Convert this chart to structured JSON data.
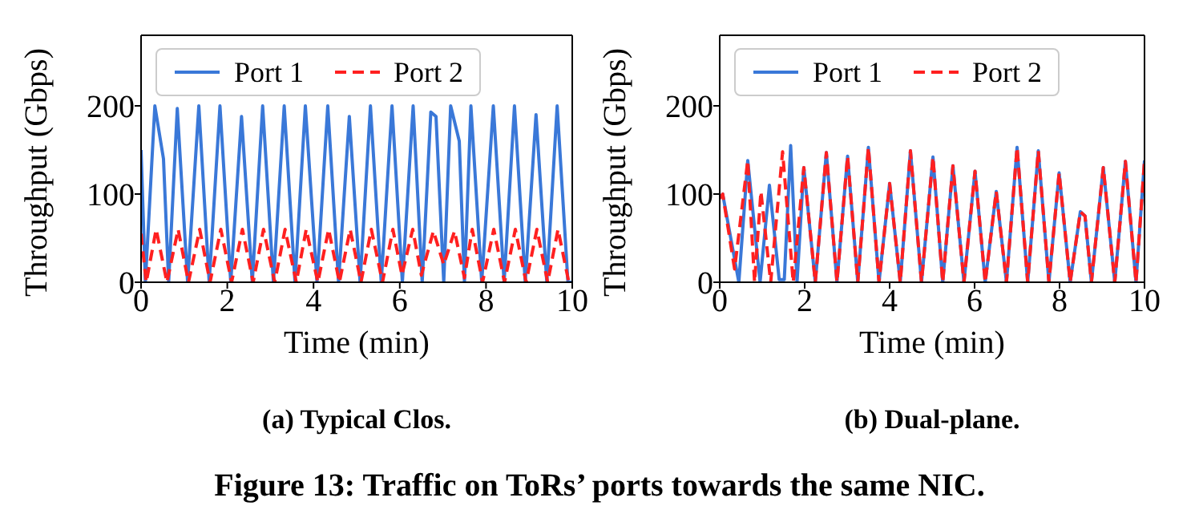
{
  "chart_data": [
    {
      "type": "line",
      "title": "(a) Typical Clos.",
      "xlabel": "Time (min)",
      "ylabel": "Throughput (Gbps)",
      "xlim": [
        0,
        10
      ],
      "xticks": [
        0,
        2,
        4,
        6,
        8,
        10
      ],
      "ylim": [
        0,
        280
      ],
      "yticks": [
        0,
        100,
        200
      ],
      "legend": "top left",
      "grid": false,
      "annotations": [
        "Figure 13: Traffic on ToRs’ ports towards the same NIC."
      ],
      "series": [
        {
          "name": "Port 1",
          "color": "#3a78d8",
          "line_style": "solid",
          "x": [
            0,
            0.1,
            0.32,
            0.52,
            0.64,
            0.84,
            1.08,
            1.34,
            1.58,
            1.83,
            2.08,
            2.33,
            2.58,
            2.82,
            3.07,
            3.32,
            3.57,
            3.81,
            4.08,
            4.33,
            4.58,
            4.83,
            5.08,
            5.32,
            5.57,
            5.82,
            6.06,
            6.31,
            6.52,
            6.72,
            6.84,
            7.02,
            7.18,
            7.38,
            7.5,
            7.65,
            7.9,
            8.17,
            8.42,
            8.66,
            8.91,
            9.16,
            9.41,
            9.65,
            9.9,
            10
          ],
          "values": [
            150,
            0,
            200,
            140,
            0,
            197,
            0,
            200,
            0,
            200,
            0,
            188,
            0,
            200,
            0,
            200,
            0,
            200,
            0,
            200,
            0,
            188,
            0,
            200,
            0,
            200,
            0,
            200,
            0,
            193,
            188,
            0,
            200,
            160,
            0,
            200,
            0,
            200,
            0,
            200,
            0,
            190,
            0,
            200,
            0,
            0
          ]
        },
        {
          "name": "Port 2",
          "color": "#ff2020",
          "line_style": "dashed",
          "x": [
            0,
            0.12,
            0.35,
            0.6,
            0.86,
            1.1,
            1.36,
            1.6,
            1.85,
            2.1,
            2.35,
            2.6,
            2.84,
            3.1,
            3.34,
            3.6,
            3.83,
            4.1,
            4.35,
            4.6,
            4.85,
            5.1,
            5.34,
            5.6,
            5.84,
            6.05,
            6.3,
            6.5,
            6.78,
            7.02,
            7.27,
            7.5,
            7.68,
            7.92,
            8.18,
            8.43,
            8.68,
            8.93,
            9.18,
            9.43,
            9.67,
            9.92,
            10
          ],
          "values": [
            55,
            0,
            60,
            0,
            60,
            0,
            60,
            0,
            60,
            0,
            60,
            0,
            60,
            0,
            60,
            0,
            60,
            0,
            60,
            0,
            60,
            0,
            60,
            0,
            60,
            8,
            60,
            8,
            58,
            20,
            58,
            5,
            60,
            0,
            60,
            0,
            60,
            0,
            60,
            0,
            60,
            0,
            0
          ]
        }
      ]
    },
    {
      "type": "line",
      "title": "(b) Dual-plane.",
      "xlabel": "Time (min)",
      "ylabel": "Throughput (Gbps)",
      "xlim": [
        0,
        10
      ],
      "xticks": [
        0,
        2,
        4,
        6,
        8,
        10
      ],
      "ylim": [
        0,
        280
      ],
      "yticks": [
        0,
        100,
        200
      ],
      "legend": "top left",
      "grid": false,
      "series": [
        {
          "name": "Port 1",
          "color": "#3a78d8",
          "line_style": "solid",
          "x": [
            0,
            0.07,
            0.45,
            0.66,
            0.95,
            1.17,
            1.4,
            1.52,
            1.67,
            1.82,
            1.98,
            2.25,
            2.51,
            2.76,
            3.01,
            3.25,
            3.5,
            3.75,
            4.0,
            4.25,
            4.49,
            4.75,
            5.02,
            5.25,
            5.49,
            5.75,
            6.01,
            6.25,
            6.51,
            6.75,
            7.0,
            7.25,
            7.5,
            7.75,
            7.99,
            8.25,
            8.49,
            8.6,
            8.75,
            9.03,
            9.3,
            9.55,
            9.8,
            10
          ],
          "values": [
            95,
            100,
            0,
            138,
            0,
            110,
            3,
            3,
            155,
            0,
            130,
            0,
            147,
            0,
            143,
            0,
            153,
            0,
            112,
            0,
            149,
            0,
            142,
            0,
            132,
            0,
            126,
            0,
            103,
            0,
            153,
            0,
            149,
            0,
            124,
            0,
            80,
            75,
            0,
            130,
            0,
            137,
            0,
            138
          ]
        },
        {
          "name": "Port 2",
          "color": "#ff2020",
          "line_style": "dashed",
          "x": [
            0,
            0.07,
            0.35,
            0.66,
            0.82,
            0.97,
            1.2,
            1.48,
            1.73,
            1.98,
            2.25,
            2.51,
            2.76,
            3.01,
            3.25,
            3.5,
            3.75,
            4.0,
            4.25,
            4.49,
            4.75,
            5.02,
            5.25,
            5.49,
            5.75,
            6.01,
            6.25,
            6.51,
            6.75,
            7.0,
            7.25,
            7.5,
            7.75,
            7.99,
            8.25,
            8.49,
            8.6,
            8.75,
            9.03,
            9.3,
            9.55,
            9.8,
            10
          ],
          "values": [
            95,
            100,
            15,
            138,
            0,
            103,
            0,
            148,
            0,
            130,
            0,
            147,
            0,
            143,
            0,
            153,
            0,
            112,
            0,
            149,
            0,
            142,
            0,
            132,
            0,
            126,
            0,
            103,
            0,
            153,
            0,
            149,
            0,
            124,
            0,
            80,
            75,
            0,
            130,
            0,
            137,
            0,
            138
          ]
        }
      ]
    }
  ]
}
